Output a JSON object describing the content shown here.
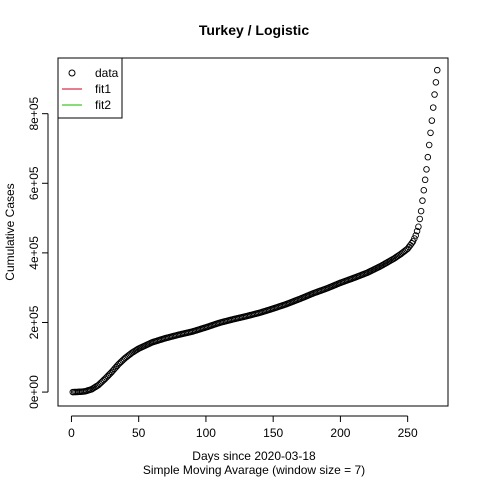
{
  "chart_data": {
    "type": "scatter",
    "title": "Turkey / Logistic",
    "xlabel": "Days since 2020-03-18",
    "subtitle": "Simple Moving Avarage (window size = 7)",
    "ylabel": "Cumulative Cases",
    "xlim": [
      -10,
      280
    ],
    "ylim": [
      -40000,
      960000
    ],
    "x_ticks": [
      0,
      50,
      100,
      150,
      200,
      250
    ],
    "x_tick_labels": [
      "0",
      "50",
      "100",
      "150",
      "200",
      "250"
    ],
    "y_ticks": [
      0,
      200000,
      400000,
      600000,
      800000
    ],
    "y_tick_labels": [
      "0e+00",
      "2e+05",
      "4e+05",
      "6e+05",
      "8e+05"
    ],
    "legend": {
      "position": "top-left",
      "entries": [
        {
          "label": "data",
          "kind": "point",
          "color": "#000000"
        },
        {
          "label": "fit1",
          "kind": "line",
          "color": "#DF536B"
        },
        {
          "label": "fit2",
          "kind": "line",
          "color": "#61D04F"
        }
      ]
    },
    "series": [
      {
        "name": "data",
        "marker": "open-circle",
        "color": "#000000",
        "x_range": [
          1,
          272
        ],
        "knots": {
          "x": [
            1,
            5,
            10,
            15,
            20,
            25,
            30,
            35,
            40,
            45,
            50,
            60,
            70,
            80,
            90,
            100,
            110,
            120,
            130,
            140,
            150,
            160,
            170,
            180,
            190,
            200,
            210,
            220,
            230,
            240,
            245,
            250,
            252,
            254,
            256,
            258,
            260,
            262,
            264,
            266,
            268,
            270,
            272
          ],
          "y": [
            0,
            500,
            2000,
            8000,
            20000,
            38000,
            58000,
            80000,
            98000,
            113000,
            125000,
            143000,
            155000,
            165000,
            174000,
            186000,
            199000,
            209000,
            218000,
            228000,
            240000,
            253000,
            268000,
            284000,
            298000,
            314000,
            328000,
            343000,
            362000,
            384000,
            397000,
            412000,
            422000,
            433000,
            450000,
            475000,
            520000,
            580000,
            640000,
            710000,
            780000,
            855000,
            925000
          ]
        }
      }
    ],
    "grid": false
  }
}
